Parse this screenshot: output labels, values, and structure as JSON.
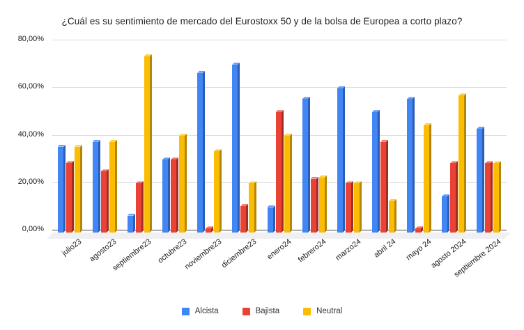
{
  "chart_data": {
    "type": "bar",
    "title": "¿Cuál es su sentimiento de mercado del Eurostoxx 50 y de la bolsa de Europea a corto plazo?",
    "style": "3d-column",
    "grid": true,
    "legend_position": "bottom",
    "value_format": "percent",
    "ylim": [
      0,
      80
    ],
    "y_ticks": [
      {
        "label": "80,00%",
        "value": 80
      },
      {
        "label": "60,00%",
        "value": 60
      },
      {
        "label": "40,00%",
        "value": 40
      },
      {
        "label": "20,00%",
        "value": 20
      },
      {
        "label": "0,00%",
        "value": 0
      }
    ],
    "categories": [
      "julio23",
      "agosto23",
      "septiembre23",
      "octubre23",
      "noviembre23",
      "diciembre23",
      "enero24",
      "febrero24",
      "marzo24",
      "abril 24",
      "mayo 24",
      "agosto 2024",
      "septiembre 2024"
    ],
    "series": [
      {
        "name": "Alcista",
        "color": "#4285f4",
        "color_dark": "#2a5db5",
        "color_light": "#69a0f6",
        "values": [
          35,
          37,
          6,
          29.5,
          66,
          69.5,
          9.5,
          55,
          59.5,
          49.5,
          55,
          14,
          42.5
        ]
      },
      {
        "name": "Bajista",
        "color": "#ea4335",
        "color_dark": "#a32d22",
        "color_light": "#f07b70",
        "values": [
          28,
          24.5,
          19.5,
          29.5,
          0.5,
          10,
          49.5,
          21.5,
          19.5,
          37,
          0.5,
          28,
          28
        ]
      },
      {
        "name": "Neutral",
        "color": "#fbbc04",
        "color_dark": "#b38604",
        "color_light": "#fcd050",
        "values": [
          35,
          37,
          73,
          39.5,
          33,
          19.5,
          39.5,
          22,
          19.5,
          12,
          44,
          56.5,
          28
        ]
      }
    ]
  }
}
